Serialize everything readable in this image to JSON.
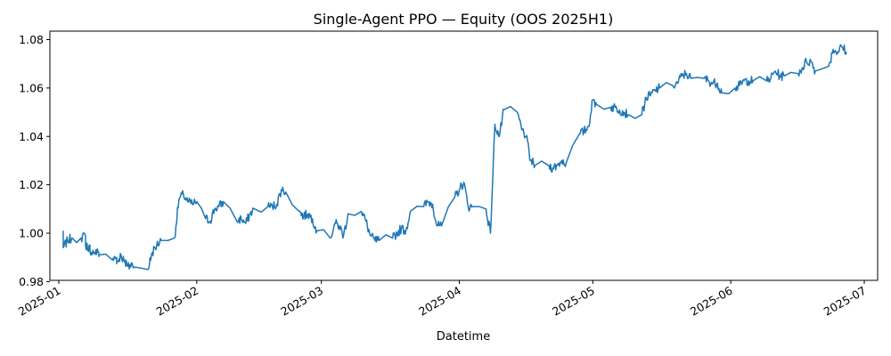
{
  "chart_data": {
    "type": "line",
    "title": "Single-Agent PPO — Equity (OOS 2025H1)",
    "xlabel": "Datetime",
    "ylabel": "",
    "xlim": [
      "2024-12-30",
      "2025-07-04"
    ],
    "ylim": [
      0.9805,
      1.0835
    ],
    "grid": false,
    "line_color": "#1f77b4",
    "x_ticks": [
      "2025-01",
      "2025-02",
      "2025-03",
      "2025-04",
      "2025-05",
      "2025-06",
      "2025-07"
    ],
    "y_ticks": [
      "0.98",
      "1.00",
      "1.02",
      "1.04",
      "1.06",
      "1.08"
    ],
    "series": [
      {
        "x": [
          "2025-01-02",
          "2025-01-02",
          "2025-01-03",
          "2025-01-04",
          "2025-01-06",
          "2025-01-07",
          "2025-01-07",
          "2025-01-08",
          "2025-01-08",
          "2025-01-09",
          "2025-01-10",
          "2025-01-10",
          "2025-01-13",
          "2025-01-14",
          "2025-01-14",
          "2025-01-15",
          "2025-01-16",
          "2025-01-16",
          "2025-01-17",
          "2025-01-18",
          "2025-01-21",
          "2025-01-22",
          "2025-01-23",
          "2025-01-24",
          "2025-01-27",
          "2025-01-28",
          "2025-01-29",
          "2025-01-30",
          "2025-01-31",
          "2025-02-01",
          "2025-02-03",
          "2025-02-04",
          "2025-02-05",
          "2025-02-06",
          "2025-02-07",
          "2025-02-10",
          "2025-02-11",
          "2025-02-12",
          "2025-02-13",
          "2025-02-14",
          "2025-02-17",
          "2025-02-18",
          "2025-02-19",
          "2025-02-20",
          "2025-02-21",
          "2025-02-24",
          "2025-02-25",
          "2025-02-26",
          "2025-02-27",
          "2025-02-28",
          "2025-03-03",
          "2025-03-04",
          "2025-03-05",
          "2025-03-06",
          "2025-03-07",
          "2025-03-10",
          "2025-03-11",
          "2025-03-12",
          "2025-03-13",
          "2025-03-14",
          "2025-03-17",
          "2025-03-18",
          "2025-03-19",
          "2025-03-20",
          "2025-03-21",
          "2025-03-24",
          "2025-03-25",
          "2025-03-26",
          "2025-03-27",
          "2025-03-28",
          "2025-03-31",
          "2025-04-01",
          "2025-04-02",
          "2025-04-03",
          "2025-04-04",
          "2025-04-07",
          "2025-04-08",
          "2025-04-09",
          "2025-04-10",
          "2025-04-11",
          "2025-04-14",
          "2025-04-15",
          "2025-04-16",
          "2025-04-17",
          "2025-04-18",
          "2025-04-21",
          "2025-04-22",
          "2025-04-23",
          "2025-04-24",
          "2025-04-25",
          "2025-04-28",
          "2025-04-29",
          "2025-04-30",
          "2025-05-01",
          "2025-05-02",
          "2025-05-05",
          "2025-05-06",
          "2025-05-07",
          "2025-05-08",
          "2025-05-09",
          "2025-05-12",
          "2025-05-13",
          "2025-05-14",
          "2025-05-15",
          "2025-05-16",
          "2025-05-19",
          "2025-05-20",
          "2025-05-21",
          "2025-05-22",
          "2025-05-23",
          "2025-05-26",
          "2025-05-27",
          "2025-05-28",
          "2025-05-29",
          "2025-05-30",
          "2025-06-02",
          "2025-06-03",
          "2025-06-04",
          "2025-06-05",
          "2025-06-06",
          "2025-06-09",
          "2025-06-10",
          "2025-06-11",
          "2025-06-12",
          "2025-06-13",
          "2025-06-16",
          "2025-06-17",
          "2025-06-18",
          "2025-06-19",
          "2025-06-20",
          "2025-06-23",
          "2025-06-24",
          "2025-06-25",
          "2025-06-26",
          "2025-06-27"
        ],
        "y": [
          1.001,
          0.994,
          0.997,
          0.998,
          0.998,
          0.999,
          0.995,
          0.994,
          0.993,
          0.992,
          0.992,
          0.991,
          0.989,
          0.99,
          0.988,
          0.991,
          0.987,
          0.988,
          0.987,
          0.986,
          0.985,
          0.992,
          0.995,
          0.997,
          0.998,
          1.014,
          1.016,
          1.013,
          1.012,
          1.013,
          1.006,
          1.005,
          1.01,
          1.011,
          1.013,
          1.005,
          1.006,
          1.004,
          1.008,
          1.01,
          1.011,
          1.011,
          1.012,
          1.018,
          1.017,
          1.009,
          1.007,
          1.008,
          1.006,
          1.001,
          0.998,
          1.004,
          1.003,
          0.999,
          1.008,
          1.009,
          1.005,
          0.999,
          0.997,
          0.997,
          0.998,
          1.0,
          1.002,
          1.001,
          1.009,
          1.011,
          1.013,
          1.012,
          1.003,
          1.003,
          1.015,
          1.018,
          1.021,
          1.011,
          1.011,
          1.01,
          1.0,
          1.045,
          1.04,
          1.051,
          1.05,
          1.043,
          1.04,
          1.03,
          1.028,
          1.028,
          1.027,
          1.028,
          1.03,
          1.029,
          1.041,
          1.042,
          1.044,
          1.055,
          1.053,
          1.052,
          1.052,
          1.051,
          1.05,
          1.049,
          1.049,
          1.056,
          1.057,
          1.059,
          1.06,
          1.061,
          1.062,
          1.065,
          1.066,
          1.064,
          1.064,
          1.063,
          1.062,
          1.062,
          1.058,
          1.06,
          1.061,
          1.063,
          1.063,
          1.063,
          1.063,
          1.064,
          1.067,
          1.065,
          1.065,
          1.066,
          1.068,
          1.071,
          1.071,
          1.067,
          1.069,
          1.076,
          1.075,
          1.077,
          1.075
        ]
      }
    ]
  }
}
